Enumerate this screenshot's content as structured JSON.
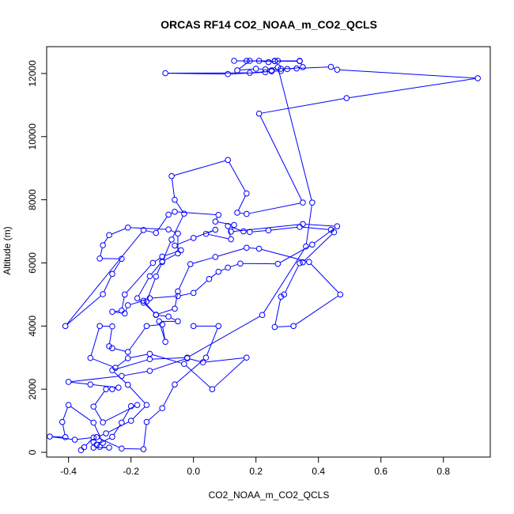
{
  "chart_data": {
    "type": "line",
    "title": "ORCAS RF14 CO2_NOAA_m_CO2_QCLS",
    "xlabel": "CO2_NOAA_m_CO2_QCLS",
    "ylabel": "Altitude (m)",
    "xlim": [
      -0.47,
      0.95
    ],
    "ylim": [
      -150,
      12850
    ],
    "xticks": [
      -0.4,
      -0.2,
      0.0,
      0.2,
      0.4,
      0.6,
      0.8
    ],
    "xtick_labels": [
      "-0.4",
      "-0.2",
      "0.0",
      "0.2",
      "0.4",
      "0.6",
      "0.8"
    ],
    "yticks": [
      0,
      2000,
      4000,
      6000,
      8000,
      10000,
      12000
    ],
    "ytick_labels": [
      "0",
      "2000",
      "4000",
      "6000",
      "8000",
      "10000",
      "12000"
    ],
    "grid": false,
    "series": [
      {
        "color": "#0000ff",
        "marker": "open-circle",
        "points": [
          [
            -0.36,
            70
          ],
          [
            -0.35,
            160
          ],
          [
            -0.32,
            470
          ],
          [
            -0.38,
            400
          ],
          [
            -0.46,
            500
          ],
          [
            -0.41,
            480
          ],
          [
            -0.42,
            960
          ],
          [
            -0.4,
            1500
          ],
          [
            -0.32,
            940
          ],
          [
            -0.29,
            300
          ],
          [
            -0.32,
            330
          ],
          [
            -0.32,
            150
          ],
          [
            -0.27,
            150
          ],
          [
            -0.3,
            170
          ],
          [
            -0.31,
            240
          ],
          [
            -0.26,
            490
          ],
          [
            -0.23,
            940
          ],
          [
            -0.2,
            1460
          ],
          [
            -0.18,
            1500
          ],
          [
            -0.29,
            950
          ],
          [
            -0.32,
            1450
          ],
          [
            -0.28,
            2000
          ],
          [
            -0.26,
            2000
          ],
          [
            -0.24,
            2050
          ],
          [
            -0.33,
            2150
          ],
          [
            -0.4,
            2230
          ],
          [
            -0.23,
            2420
          ],
          [
            -0.14,
            2580
          ],
          [
            -0.02,
            2980
          ],
          [
            0.03,
            2850
          ],
          [
            0.17,
            3000
          ],
          [
            0.06,
            2000
          ],
          [
            -0.03,
            2800
          ],
          [
            -0.14,
            3120
          ],
          [
            -0.21,
            2980
          ],
          [
            -0.25,
            2680
          ],
          [
            -0.33,
            2990
          ],
          [
            -0.3,
            4000
          ],
          [
            -0.26,
            3990
          ],
          [
            -0.27,
            3360
          ],
          [
            -0.26,
            3300
          ],
          [
            -0.21,
            3180
          ],
          [
            -0.15,
            4000
          ],
          [
            -0.1,
            4050
          ],
          [
            -0.09,
            3500
          ],
          [
            -0.11,
            4150
          ],
          [
            -0.05,
            4150
          ],
          [
            -0.08,
            4300
          ],
          [
            -0.12,
            4350
          ],
          [
            -0.16,
            4800
          ],
          [
            -0.21,
            4660
          ],
          [
            -0.22,
            4400
          ],
          [
            -0.26,
            4450
          ],
          [
            -0.23,
            4490
          ],
          [
            -0.22,
            5000
          ],
          [
            -0.13,
            6000
          ],
          [
            -0.1,
            6200
          ],
          [
            -0.04,
            6400
          ],
          [
            -0.06,
            6550
          ],
          [
            0.0,
            6790
          ],
          [
            0.07,
            7050
          ],
          [
            0.04,
            6920
          ],
          [
            0.12,
            6750
          ],
          [
            0.11,
            7170
          ],
          [
            0.16,
            7000
          ],
          [
            0.18,
            6980
          ],
          [
            0.24,
            7030
          ],
          [
            0.34,
            7140
          ],
          [
            0.44,
            7050
          ],
          [
            0.45,
            6970
          ],
          [
            0.35,
            6020
          ],
          [
            0.34,
            5990
          ],
          [
            0.29,
            5000
          ],
          [
            0.28,
            4930
          ],
          [
            0.26,
            3970
          ],
          [
            0.32,
            4000
          ],
          [
            0.47,
            5000
          ],
          [
            0.37,
            6030
          ],
          [
            0.21,
            6450
          ],
          [
            0.17,
            6480
          ],
          [
            0.07,
            6190
          ],
          [
            -0.01,
            5960
          ],
          [
            -0.05,
            5100
          ],
          [
            -0.06,
            4550
          ],
          [
            -0.12,
            4360
          ],
          [
            -0.16,
            4740
          ],
          [
            -0.18,
            4880
          ],
          [
            -0.14,
            5580
          ],
          [
            -0.1,
            6050
          ],
          [
            -0.05,
            6300
          ],
          [
            -0.05,
            6930
          ],
          [
            -0.08,
            7060
          ],
          [
            -0.21,
            7120
          ],
          [
            -0.27,
            6880
          ],
          [
            -0.29,
            6560
          ],
          [
            -0.3,
            6140
          ],
          [
            -0.23,
            6130
          ],
          [
            -0.26,
            5650
          ],
          [
            -0.29,
            5010
          ],
          [
            -0.41,
            4000
          ],
          [
            -0.16,
            7040
          ],
          [
            -0.12,
            6950
          ],
          [
            -0.08,
            7530
          ],
          [
            -0.06,
            7620
          ],
          [
            0.08,
            7520
          ],
          [
            0.07,
            7310
          ],
          [
            0.13,
            7200
          ],
          [
            0.12,
            6990
          ],
          [
            0.35,
            7230
          ],
          [
            0.46,
            7160
          ],
          [
            0.38,
            6580
          ],
          [
            0.27,
            5970
          ],
          [
            0.15,
            5980
          ],
          [
            0.11,
            5850
          ],
          [
            0.08,
            5720
          ],
          [
            0.05,
            5490
          ],
          [
            0.0,
            5050
          ],
          [
            -0.05,
            4950
          ],
          [
            -0.14,
            4880
          ],
          [
            -0.15,
            4780
          ],
          [
            -0.12,
            5570
          ],
          [
            -0.1,
            6030
          ],
          [
            -0.07,
            6740
          ],
          [
            -0.03,
            7560
          ],
          [
            -0.06,
            8000
          ],
          [
            -0.07,
            8750
          ],
          [
            0.11,
            9260
          ],
          [
            0.17,
            8200
          ],
          [
            0.14,
            7590
          ],
          [
            0.17,
            7550
          ],
          [
            0.35,
            7910
          ],
          [
            0.21,
            10730
          ],
          [
            0.49,
            11220
          ],
          [
            0.91,
            11850
          ],
          [
            0.46,
            12120
          ],
          [
            0.44,
            12210
          ],
          [
            0.33,
            12160
          ],
          [
            0.28,
            12150
          ],
          [
            0.25,
            12100
          ],
          [
            0.23,
            12040
          ],
          [
            0.11,
            11980
          ],
          [
            -0.09,
            12010
          ],
          [
            0.18,
            12020
          ],
          [
            0.25,
            12070
          ],
          [
            0.28,
            12080
          ],
          [
            0.3,
            12140
          ],
          [
            0.35,
            12200
          ],
          [
            0.34,
            12400
          ],
          [
            0.27,
            12400
          ],
          [
            0.24,
            12360
          ],
          [
            0.21,
            12400
          ],
          [
            0.17,
            12400
          ],
          [
            0.13,
            12400
          ],
          [
            0.26,
            12390
          ],
          [
            0.34,
            12390
          ],
          [
            0.26,
            12400
          ],
          [
            0.18,
            12400
          ],
          [
            0.14,
            12100
          ],
          [
            0.2,
            12150
          ],
          [
            0.23,
            12130
          ],
          [
            0.27,
            12200
          ],
          [
            0.38,
            7910
          ],
          [
            0.36,
            6520
          ],
          [
            0.22,
            4350
          ],
          [
            -0.02,
            3000
          ],
          [
            -0.14,
            2950
          ],
          [
            -0.26,
            2600
          ],
          [
            -0.21,
            2140
          ],
          [
            -0.15,
            1500
          ],
          [
            -0.2,
            1000
          ],
          [
            -0.28,
            600
          ],
          [
            -0.31,
            480
          ],
          [
            -0.23,
            120
          ],
          [
            -0.16,
            100
          ],
          [
            -0.15,
            960
          ],
          [
            -0.1,
            1400
          ],
          [
            -0.06,
            2150
          ],
          [
            0.04,
            3000
          ],
          [
            0.08,
            4000
          ],
          [
            0.0,
            4000
          ]
        ]
      }
    ]
  }
}
